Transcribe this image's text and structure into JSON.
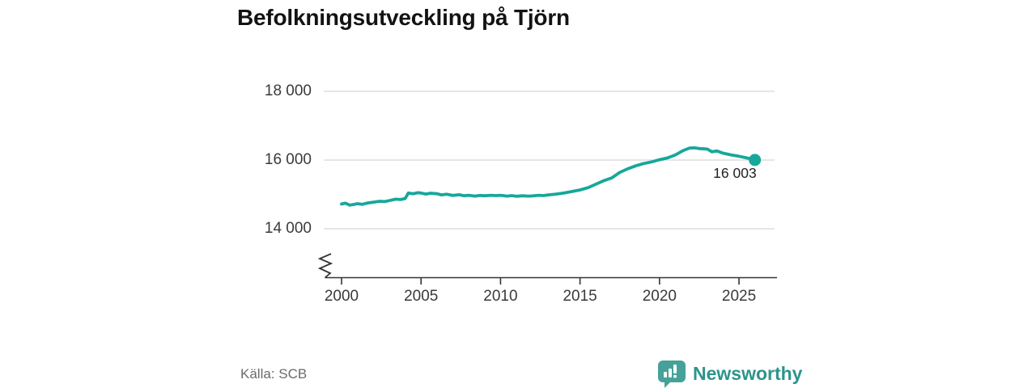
{
  "header": {
    "title": "Befolkningsutveckling på Tjörn"
  },
  "footer": {
    "source": "Källa: SCB",
    "brand": "Newsworthy"
  },
  "colors": {
    "line": "#17a79b",
    "grid": "#d8d8d8",
    "axis": "#333333",
    "title_text": "#131313",
    "tick_text": "#3a3a3a",
    "source_text": "#6b6b6b",
    "brand_mark": "#46a19a",
    "brand_text": "#2d948b",
    "background": "#ffffff"
  },
  "chart_data": {
    "type": "line",
    "title": "Befolkningsutveckling på Tjörn",
    "xlabel": "",
    "ylabel": "",
    "grid": "horizontal",
    "axis_break_at_bottom": true,
    "xlim": [
      1999.5,
      2027.3
    ],
    "ylim": [
      12600,
      18600
    ],
    "x_ticks": [
      2000,
      2005,
      2010,
      2015,
      2020,
      2025
    ],
    "x_tick_labels": [
      "2000",
      "2005",
      "2010",
      "2015",
      "2020",
      "2025"
    ],
    "y_ticks": [
      18000,
      16000,
      14000
    ],
    "y_tick_labels": [
      "18 000",
      "16 000",
      "14 000"
    ],
    "end_label": "16 003",
    "latest_value": 16003,
    "series": [
      {
        "name": "Befolkning",
        "points": [
          [
            2000.0,
            14720
          ],
          [
            2000.25,
            14745
          ],
          [
            2000.5,
            14690
          ],
          [
            2000.75,
            14705
          ],
          [
            2001.0,
            14730
          ],
          [
            2001.3,
            14710
          ],
          [
            2001.6,
            14745
          ],
          [
            2002.0,
            14775
          ],
          [
            2002.4,
            14800
          ],
          [
            2002.7,
            14790
          ],
          [
            2003.0,
            14820
          ],
          [
            2003.4,
            14860
          ],
          [
            2003.7,
            14850
          ],
          [
            2004.0,
            14880
          ],
          [
            2004.2,
            15040
          ],
          [
            2004.5,
            15020
          ],
          [
            2004.8,
            15050
          ],
          [
            2005.0,
            15040
          ],
          [
            2005.3,
            15010
          ],
          [
            2005.6,
            15035
          ],
          [
            2006.0,
            15020
          ],
          [
            2006.3,
            14985
          ],
          [
            2006.6,
            15005
          ],
          [
            2007.0,
            14970
          ],
          [
            2007.4,
            14990
          ],
          [
            2007.7,
            14960
          ],
          [
            2008.0,
            14975
          ],
          [
            2008.4,
            14950
          ],
          [
            2008.7,
            14970
          ],
          [
            2009.0,
            14960
          ],
          [
            2009.4,
            14975
          ],
          [
            2009.7,
            14965
          ],
          [
            2010.0,
            14975
          ],
          [
            2010.4,
            14950
          ],
          [
            2010.7,
            14965
          ],
          [
            2011.0,
            14945
          ],
          [
            2011.4,
            14960
          ],
          [
            2011.7,
            14950
          ],
          [
            2012.0,
            14955
          ],
          [
            2012.4,
            14975
          ],
          [
            2012.7,
            14965
          ],
          [
            2013.0,
            14985
          ],
          [
            2013.5,
            15010
          ],
          [
            2014.0,
            15040
          ],
          [
            2014.5,
            15085
          ],
          [
            2015.0,
            15130
          ],
          [
            2015.5,
            15195
          ],
          [
            2016.0,
            15300
          ],
          [
            2016.5,
            15400
          ],
          [
            2017.0,
            15480
          ],
          [
            2017.5,
            15640
          ],
          [
            2018.0,
            15745
          ],
          [
            2018.5,
            15830
          ],
          [
            2019.0,
            15900
          ],
          [
            2019.5,
            15945
          ],
          [
            2020.0,
            16010
          ],
          [
            2020.5,
            16060
          ],
          [
            2021.0,
            16150
          ],
          [
            2021.5,
            16280
          ],
          [
            2021.9,
            16350
          ],
          [
            2022.2,
            16355
          ],
          [
            2022.5,
            16335
          ],
          [
            2023.0,
            16320
          ],
          [
            2023.3,
            16240
          ],
          [
            2023.6,
            16265
          ],
          [
            2024.0,
            16200
          ],
          [
            2024.5,
            16150
          ],
          [
            2025.0,
            16110
          ],
          [
            2025.4,
            16070
          ],
          [
            2025.7,
            16040
          ],
          [
            2026.0,
            16003
          ]
        ]
      }
    ]
  }
}
